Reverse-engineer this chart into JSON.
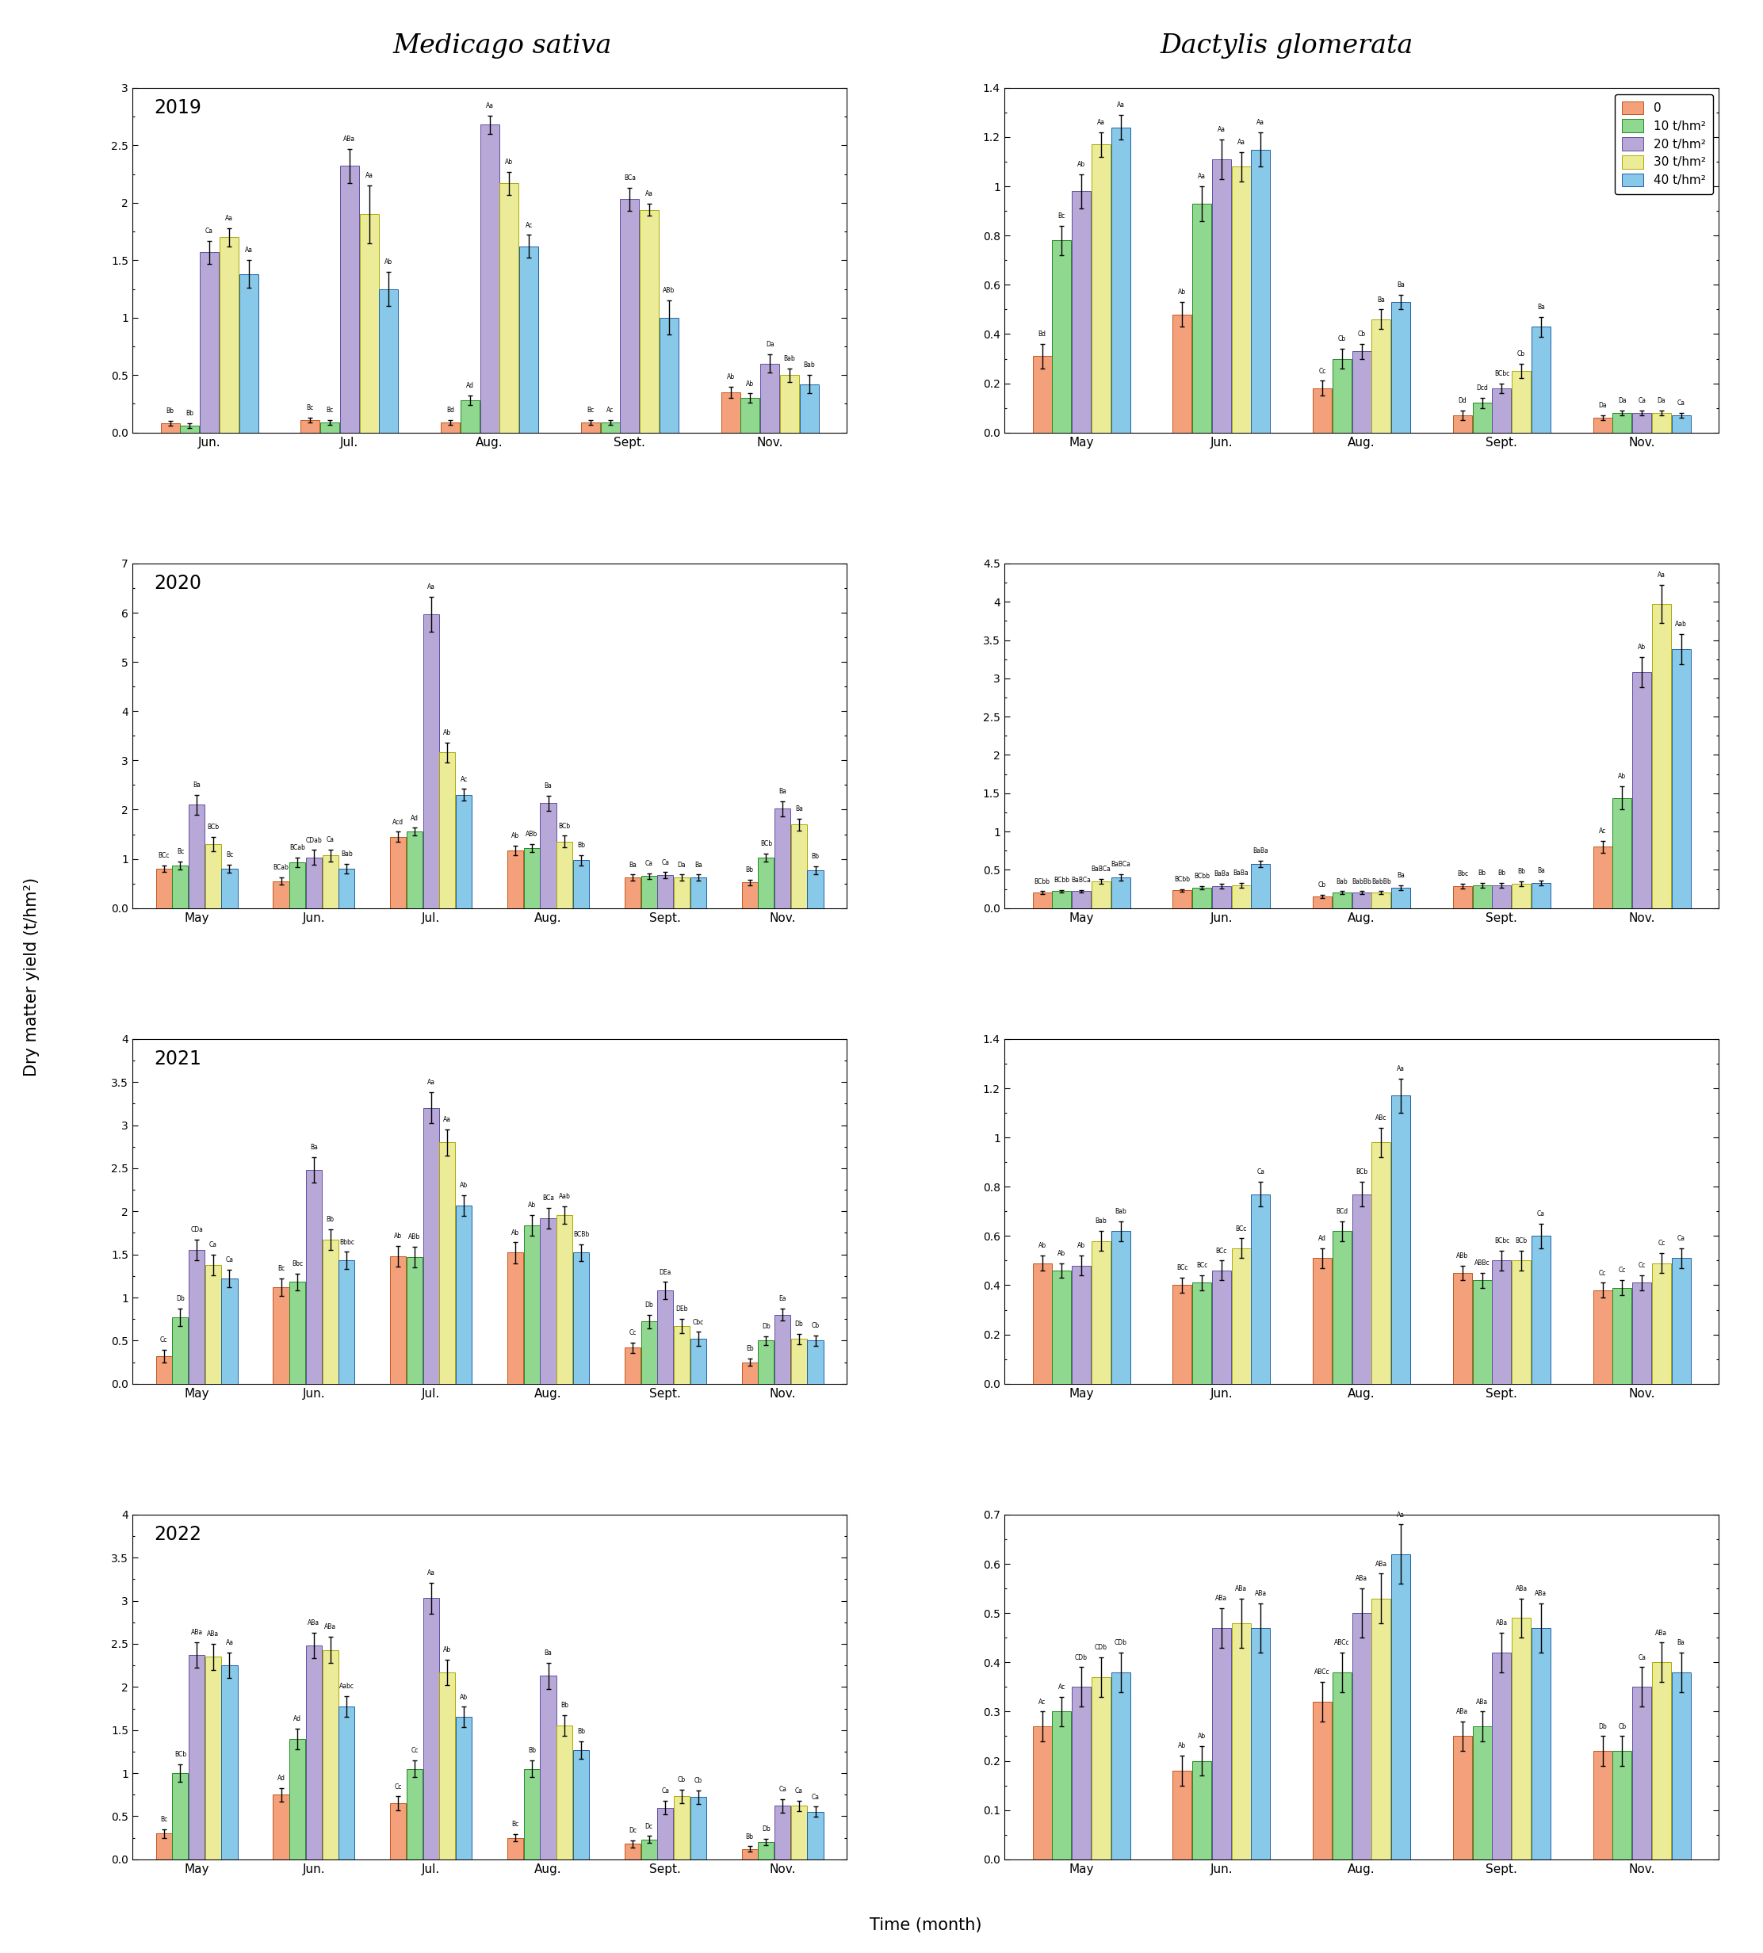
{
  "title_left": "Medicago sativa",
  "title_right": "Dactylis glomerata",
  "ylabel": "Dry matter yield (t/hm²)",
  "xlabel": "Time (month)",
  "bar_colors": [
    "#F4A460",
    "#90EE90",
    "#B8A8D8",
    "#EEEE88",
    "#87CEEB"
  ],
  "bar_edge_colors": [
    "#C07030",
    "#228B22",
    "#6855A0",
    "#AAAA00",
    "#3070B0"
  ],
  "legend_labels": [
    "0",
    "10 t/hm²",
    "20 t/hm²",
    "30 t/hm²",
    "40 t/hm²"
  ],
  "ms_2019": {
    "months": [
      "Jun.",
      "Jul.",
      "Aug.",
      "Sept.",
      "Nov."
    ],
    "ylim": [
      0,
      3.0
    ],
    "yticks": [
      0.0,
      0.5,
      1.0,
      1.5,
      2.0,
      2.5,
      3.0
    ],
    "values": [
      [
        0.08,
        0.11,
        0.09,
        0.09,
        0.35
      ],
      [
        0.06,
        0.09,
        0.28,
        0.09,
        0.3
      ],
      [
        1.57,
        2.32,
        2.68,
        2.03,
        0.6
      ],
      [
        1.7,
        1.9,
        2.17,
        1.94,
        0.5
      ],
      [
        1.38,
        1.25,
        1.62,
        1.0,
        0.42
      ]
    ],
    "errors": [
      [
        0.02,
        0.02,
        0.02,
        0.02,
        0.05
      ],
      [
        0.02,
        0.02,
        0.04,
        0.02,
        0.04
      ],
      [
        0.1,
        0.15,
        0.08,
        0.1,
        0.08
      ],
      [
        0.08,
        0.25,
        0.1,
        0.05,
        0.06
      ],
      [
        0.12,
        0.15,
        0.1,
        0.15,
        0.08
      ]
    ],
    "labels": [
      [
        "Bb",
        "Bc",
        "Bd",
        "Bc",
        "Ab"
      ],
      [
        "Bb",
        "Bc",
        "Ad",
        "Ac",
        "Ab"
      ],
      [
        "Ca",
        "ABa",
        "Aa",
        "BCa",
        "Da"
      ],
      [
        "Aa",
        "Aa",
        "Ab",
        "Aa",
        "Bab"
      ],
      [
        "Aa",
        "Ab",
        "Ac",
        "ABb",
        "Bab"
      ]
    ]
  },
  "dg_2019": {
    "months": [
      "May",
      "Jun.",
      "Aug.",
      "Sept.",
      "Nov."
    ],
    "ylim": [
      0,
      1.4
    ],
    "yticks": [
      0.0,
      0.2,
      0.4,
      0.6,
      0.8,
      1.0,
      1.2,
      1.4
    ],
    "values": [
      [
        0.31,
        0.48,
        0.18,
        0.07,
        0.06
      ],
      [
        0.78,
        0.93,
        0.3,
        0.12,
        0.08
      ],
      [
        0.98,
        1.11,
        0.33,
        0.18,
        0.08
      ],
      [
        1.17,
        1.08,
        0.46,
        0.25,
        0.08
      ],
      [
        1.24,
        1.15,
        0.53,
        0.43,
        0.07
      ]
    ],
    "errors": [
      [
        0.05,
        0.05,
        0.03,
        0.02,
        0.01
      ],
      [
        0.06,
        0.07,
        0.04,
        0.02,
        0.01
      ],
      [
        0.07,
        0.08,
        0.03,
        0.02,
        0.01
      ],
      [
        0.05,
        0.06,
        0.04,
        0.03,
        0.01
      ],
      [
        0.05,
        0.07,
        0.03,
        0.04,
        0.01
      ]
    ],
    "labels": [
      [
        "Bd",
        "Ab",
        "Cc",
        "Dd",
        "Da"
      ],
      [
        "Bc",
        "Aa",
        "Cb",
        "Dcd",
        "Da"
      ],
      [
        "Ab",
        "Aa",
        "Cb",
        "BCbc",
        "Ca"
      ],
      [
        "Aa",
        "Aa",
        "Ba",
        "Cb",
        "Da"
      ],
      [
        "Aa",
        "Aa",
        "Ba",
        "Ba",
        "Ca"
      ]
    ]
  },
  "ms_2020": {
    "months": [
      "May",
      "Jun.",
      "Jul.",
      "Aug.",
      "Sept.",
      "Nov."
    ],
    "ylim": [
      0,
      7.0
    ],
    "yticks": [
      0,
      1,
      2,
      3,
      4,
      5,
      6,
      7
    ],
    "values": [
      [
        0.8,
        0.55,
        1.45,
        1.17,
        0.62,
        0.52
      ],
      [
        0.86,
        0.93,
        1.55,
        1.22,
        0.65,
        1.03
      ],
      [
        2.1,
        1.03,
        5.97,
        2.13,
        0.67,
        2.02
      ],
      [
        1.3,
        1.07,
        3.16,
        1.35,
        0.62,
        1.7
      ],
      [
        0.8,
        0.8,
        2.3,
        0.97,
        0.62,
        0.77
      ]
    ],
    "errors": [
      [
        0.06,
        0.08,
        0.1,
        0.1,
        0.06,
        0.06
      ],
      [
        0.08,
        0.1,
        0.08,
        0.08,
        0.06,
        0.08
      ],
      [
        0.2,
        0.15,
        0.35,
        0.15,
        0.06,
        0.15
      ],
      [
        0.15,
        0.12,
        0.2,
        0.12,
        0.06,
        0.12
      ],
      [
        0.08,
        0.1,
        0.12,
        0.1,
        0.06,
        0.08
      ]
    ],
    "labels": [
      [
        "BCc",
        "BCab",
        "Acd",
        "Ab",
        "Ba",
        "Bb"
      ],
      [
        "Bc",
        "BCab",
        "Ad",
        "ABb",
        "Ca",
        "BCb"
      ],
      [
        "Ba",
        "CDab",
        "Aa",
        "Ba",
        "Ca",
        "Ba"
      ],
      [
        "BCb",
        "Ca",
        "Ab",
        "BCb",
        "Da",
        "Ba"
      ],
      [
        "Bc",
        "Bab",
        "Ac",
        "Bb",
        "Ba",
        "Bb"
      ]
    ]
  },
  "dg_2020": {
    "months": [
      "May",
      "Jun.",
      "Aug.",
      "Sept.",
      "Nov."
    ],
    "ylim": [
      0,
      4.5
    ],
    "yticks": [
      0.0,
      0.5,
      1.0,
      1.5,
      2.0,
      2.5,
      3.0,
      3.5,
      4.0,
      4.5
    ],
    "values": [
      [
        0.2,
        0.23,
        0.15,
        0.29,
        0.8
      ],
      [
        0.22,
        0.27,
        0.2,
        0.3,
        1.44
      ],
      [
        0.22,
        0.29,
        0.2,
        0.3,
        3.08
      ],
      [
        0.35,
        0.3,
        0.2,
        0.32,
        3.97
      ],
      [
        0.4,
        0.58,
        0.27,
        0.33,
        3.38
      ]
    ],
    "errors": [
      [
        0.02,
        0.02,
        0.02,
        0.03,
        0.08
      ],
      [
        0.02,
        0.02,
        0.02,
        0.03,
        0.15
      ],
      [
        0.02,
        0.03,
        0.02,
        0.03,
        0.2
      ],
      [
        0.03,
        0.03,
        0.02,
        0.03,
        0.25
      ],
      [
        0.04,
        0.04,
        0.03,
        0.03,
        0.2
      ]
    ],
    "labels": [
      [
        "BCbb",
        "BCbb",
        "Cb",
        "Bbc",
        "Ac"
      ],
      [
        "BCbb",
        "BCbb",
        "Bab",
        "Bb",
        "Ab"
      ],
      [
        "BaBCa",
        "BaBa",
        "BabBb",
        "Bb",
        "Ab"
      ],
      [
        "BaBCa",
        "BaBa",
        "BabBb",
        "Bb",
        "Aa"
      ],
      [
        "BaBCa",
        "BaBa",
        "Ba",
        "Ba",
        "Aab"
      ]
    ]
  },
  "ms_2021": {
    "months": [
      "May",
      "Jun.",
      "Jul.",
      "Aug.",
      "Sept.",
      "Nov."
    ],
    "ylim": [
      0,
      4.0
    ],
    "yticks": [
      0.0,
      0.5,
      1.0,
      1.5,
      2.0,
      2.5,
      3.0,
      3.5,
      4.0
    ],
    "values": [
      [
        0.32,
        1.12,
        1.48,
        1.52,
        0.42,
        0.25
      ],
      [
        0.77,
        1.18,
        1.47,
        1.84,
        0.72,
        0.5
      ],
      [
        1.55,
        2.48,
        3.2,
        1.92,
        1.08,
        0.8
      ],
      [
        1.38,
        1.67,
        2.8,
        1.96,
        0.67,
        0.52
      ],
      [
        1.22,
        1.43,
        2.07,
        1.52,
        0.52,
        0.5
      ]
    ],
    "errors": [
      [
        0.07,
        0.1,
        0.12,
        0.12,
        0.06,
        0.04
      ],
      [
        0.1,
        0.1,
        0.12,
        0.12,
        0.08,
        0.05
      ],
      [
        0.12,
        0.15,
        0.18,
        0.12,
        0.1,
        0.07
      ],
      [
        0.12,
        0.12,
        0.15,
        0.1,
        0.08,
        0.06
      ],
      [
        0.1,
        0.1,
        0.12,
        0.1,
        0.08,
        0.06
      ]
    ],
    "labels": [
      [
        "Cc",
        "Bc",
        "Ab",
        "Ab",
        "Cc",
        "Eb"
      ],
      [
        "Db",
        "Bbc",
        "ABb",
        "Ab",
        "Db",
        "Db"
      ],
      [
        "CDa",
        "Ba",
        "Aa",
        "BCa",
        "DEa",
        "Ea"
      ],
      [
        "Ca",
        "Bb",
        "Aa",
        "Aab",
        "DEb",
        "Db"
      ],
      [
        "Ca",
        "Bbbc",
        "Ab",
        "BCBb",
        "Cbc",
        "Cb"
      ]
    ]
  },
  "dg_2021": {
    "months": [
      "May",
      "Jun.",
      "Aug.",
      "Sept.",
      "Nov."
    ],
    "ylim": [
      0,
      1.4
    ],
    "yticks": [
      0.0,
      0.2,
      0.4,
      0.6,
      0.8,
      1.0,
      1.2,
      1.4
    ],
    "values": [
      [
        0.49,
        0.4,
        0.51,
        0.45,
        0.38
      ],
      [
        0.46,
        0.41,
        0.62,
        0.42,
        0.39
      ],
      [
        0.48,
        0.46,
        0.77,
        0.5,
        0.41
      ],
      [
        0.58,
        0.55,
        0.98,
        0.5,
        0.49
      ],
      [
        0.62,
        0.77,
        1.17,
        0.6,
        0.51
      ]
    ],
    "errors": [
      [
        0.03,
        0.03,
        0.04,
        0.03,
        0.03
      ],
      [
        0.03,
        0.03,
        0.04,
        0.03,
        0.03
      ],
      [
        0.04,
        0.04,
        0.05,
        0.04,
        0.03
      ],
      [
        0.04,
        0.04,
        0.06,
        0.04,
        0.04
      ],
      [
        0.04,
        0.05,
        0.07,
        0.05,
        0.04
      ]
    ],
    "labels": [
      [
        "Ab",
        "BCc",
        "Ad",
        "ABb",
        "Cc"
      ],
      [
        "Ab",
        "BCc",
        "BCd",
        "ABBc",
        "Cc"
      ],
      [
        "Ab",
        "BCc",
        "BCb",
        "BCbc",
        "Cc"
      ],
      [
        "Bab",
        "BCc",
        "ABc",
        "BCb",
        "Cc"
      ],
      [
        "Bab",
        "Ca",
        "Aa",
        "Ca",
        "Ca"
      ]
    ]
  },
  "ms_2022": {
    "months": [
      "May",
      "Jun.",
      "Jul.",
      "Aug.",
      "Sept.",
      "Nov."
    ],
    "ylim": [
      0,
      4.0
    ],
    "yticks": [
      0.0,
      0.5,
      1.0,
      1.5,
      2.0,
      2.5,
      3.0,
      3.5,
      4.0
    ],
    "values": [
      [
        0.3,
        0.75,
        0.65,
        0.25,
        0.18,
        0.12
      ],
      [
        1.0,
        1.4,
        1.05,
        1.05,
        0.23,
        0.2
      ],
      [
        2.37,
        2.48,
        3.03,
        2.13,
        0.6,
        0.62
      ],
      [
        2.35,
        2.43,
        2.17,
        1.55,
        0.73,
        0.62
      ],
      [
        2.25,
        1.77,
        1.65,
        1.27,
        0.72,
        0.55
      ]
    ],
    "errors": [
      [
        0.05,
        0.08,
        0.08,
        0.04,
        0.04,
        0.03
      ],
      [
        0.1,
        0.12,
        0.1,
        0.1,
        0.04,
        0.04
      ],
      [
        0.15,
        0.15,
        0.18,
        0.15,
        0.08,
        0.08
      ],
      [
        0.15,
        0.15,
        0.15,
        0.12,
        0.08,
        0.06
      ],
      [
        0.15,
        0.12,
        0.12,
        0.1,
        0.08,
        0.06
      ]
    ],
    "labels": [
      [
        "Bc",
        "Ad",
        "Cc",
        "Bc",
        "Dc",
        "Bb"
      ],
      [
        "BCb",
        "Ad",
        "Cc",
        "Bb",
        "Dc",
        "Db"
      ],
      [
        "ABa",
        "ABa",
        "Aa",
        "Ba",
        "Ca",
        "Ca"
      ],
      [
        "ABa",
        "ABa",
        "Ab",
        "Bb",
        "Cb",
        "Ca"
      ],
      [
        "Aa",
        "Aabc",
        "Ab",
        "Bb",
        "Cb",
        "Ca"
      ]
    ]
  },
  "dg_2022": {
    "months": [
      "May",
      "Jun.",
      "Aug.",
      "Sept.",
      "Nov."
    ],
    "ylim": [
      0,
      0.7
    ],
    "yticks": [
      0.0,
      0.1,
      0.2,
      0.3,
      0.4,
      0.5,
      0.6,
      0.7
    ],
    "values": [
      [
        0.27,
        0.18,
        0.32,
        0.25,
        0.22
      ],
      [
        0.3,
        0.2,
        0.38,
        0.27,
        0.22
      ],
      [
        0.35,
        0.47,
        0.5,
        0.42,
        0.35
      ],
      [
        0.37,
        0.48,
        0.53,
        0.49,
        0.4
      ],
      [
        0.38,
        0.47,
        0.62,
        0.47,
        0.38
      ]
    ],
    "errors": [
      [
        0.03,
        0.03,
        0.04,
        0.03,
        0.03
      ],
      [
        0.03,
        0.03,
        0.04,
        0.03,
        0.03
      ],
      [
        0.04,
        0.04,
        0.05,
        0.04,
        0.04
      ],
      [
        0.04,
        0.05,
        0.05,
        0.04,
        0.04
      ],
      [
        0.04,
        0.05,
        0.06,
        0.05,
        0.04
      ]
    ],
    "labels": [
      [
        "Ac",
        "Ab",
        "ABCc",
        "ABa",
        "Db"
      ],
      [
        "Ac",
        "Ab",
        "ABCc",
        "ABa",
        "Cb"
      ],
      [
        "CDb",
        "ABa",
        "ABa",
        "ABa",
        "Ca"
      ],
      [
        "CDb",
        "ABa",
        "ABa",
        "ABa",
        "ABa"
      ],
      [
        "CDb",
        "ABa",
        "Aa",
        "ABa",
        "Ba"
      ]
    ]
  }
}
